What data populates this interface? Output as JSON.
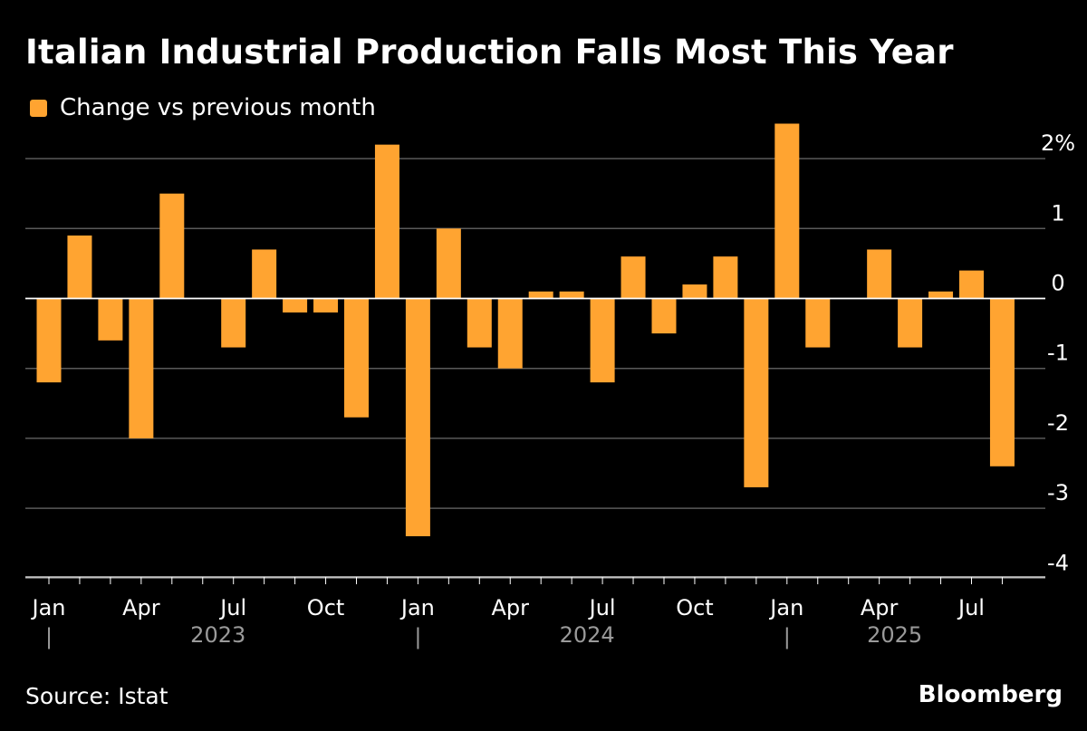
{
  "colors": {
    "background": "#000000",
    "bar": "#ffa431",
    "grid": "#5a5a5a",
    "zero_line": "#ffffff",
    "text": "#ffffff",
    "year_text": "#9a9a9a"
  },
  "footer": {
    "source": "Source: Istat",
    "brand": "Bloomberg"
  },
  "chart_data": {
    "type": "bar",
    "title": "Italian Industrial Production Falls Most This Year",
    "legend": [
      {
        "name": "Change vs previous month",
        "color": "#ffa431"
      }
    ],
    "legend_position": "top-left",
    "xlabel": "",
    "ylabel": "",
    "ylim": [
      -4,
      2
    ],
    "yticks": [
      2,
      1,
      0,
      -1,
      -2,
      -3,
      -4
    ],
    "ytick_labels": [
      "2%",
      "1",
      "0",
      "-1",
      "-2",
      "-3",
      "-4"
    ],
    "y_axis_side": "right",
    "grid": true,
    "categories": [
      "2023-01",
      "2023-02",
      "2023-03",
      "2023-04",
      "2023-05",
      "2023-06",
      "2023-07",
      "2023-08",
      "2023-09",
      "2023-10",
      "2023-11",
      "2023-12",
      "2024-01",
      "2024-02",
      "2024-03",
      "2024-04",
      "2024-05",
      "2024-06",
      "2024-07",
      "2024-08",
      "2024-09",
      "2024-10",
      "2024-11",
      "2024-12",
      "2025-01",
      "2025-02",
      "2025-03",
      "2025-04",
      "2025-05",
      "2025-06",
      "2025-07",
      "2025-08"
    ],
    "series": [
      {
        "name": "Change vs previous month",
        "values": [
          -1.2,
          0.9,
          -0.6,
          -2.0,
          1.5,
          0.0,
          -0.7,
          0.7,
          -0.2,
          -0.2,
          -1.7,
          2.2,
          -3.4,
          1.0,
          -0.7,
          -1.0,
          0.1,
          0.1,
          -1.2,
          0.6,
          -0.5,
          0.2,
          0.6,
          -2.7,
          2.5,
          -0.7,
          0.0,
          0.7,
          -0.7,
          0.1,
          0.4,
          -2.4
        ]
      }
    ],
    "x_tick_labels": [
      {
        "index": 0,
        "label": "Jan"
      },
      {
        "index": 3,
        "label": "Apr"
      },
      {
        "index": 6,
        "label": "Jul"
      },
      {
        "index": 9,
        "label": "Oct"
      },
      {
        "index": 12,
        "label": "Jan"
      },
      {
        "index": 15,
        "label": "Apr"
      },
      {
        "index": 18,
        "label": "Jul"
      },
      {
        "index": 21,
        "label": "Oct"
      },
      {
        "index": 24,
        "label": "Jan"
      },
      {
        "index": 27,
        "label": "Apr"
      },
      {
        "index": 30,
        "label": "Jul"
      }
    ],
    "year_labels": [
      {
        "start": 0,
        "end": 11,
        "label": "2023"
      },
      {
        "start": 12,
        "end": 23,
        "label": "2024"
      },
      {
        "start": 24,
        "end": 31,
        "label": "2025"
      }
    ],
    "year_separators": [
      0,
      12,
      24
    ],
    "year_separator_glyph": "|"
  }
}
